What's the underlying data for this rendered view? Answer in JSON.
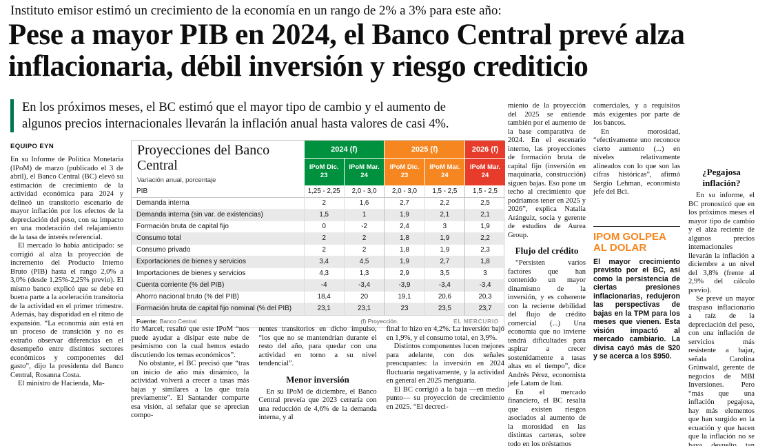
{
  "masthead": {
    "kicker": "Instituto emisor estimó un crecimiento de la economía en un rango de 2% a 3% para este año:",
    "headline": "Pese a mayor PIB en 2024, el Banco Central prevé alza inflacionaria, débil inversión y riesgo crediticio",
    "subhead": "En los próximos meses, el BC estimó que el mayor tipo de cambio y el aumento de algunos precios internacionales llevarán la inflación anual hasta valores de casi 4%.",
    "byline": "EQUIPO EYN"
  },
  "table": {
    "title": "Proyecciones del Banco Central",
    "subtitle": "Variación anual, porcentaje",
    "year_groups": [
      {
        "label": "2024 (f)",
        "color": "#00913f"
      },
      {
        "label": "2025 (f)",
        "color": "#f6861f"
      },
      {
        "label": "2026 (f)",
        "color": "#e73b2b"
      }
    ],
    "col_headers": [
      "IPoM Dic. 23",
      "IPoM Mar. 24",
      "IPoM Dic. 23",
      "IPoM Mar. 24",
      "IPoM Mar. 24"
    ],
    "rows": [
      {
        "label": "PIB",
        "values": [
          "1,25 - 2,25",
          "2,0 - 3,0",
          "2,0 - 3,0",
          "1,5 - 2,5",
          "1,5 - 2,5"
        ]
      },
      {
        "label": "Demanda interna",
        "values": [
          "2",
          "1,6",
          "2,7",
          "2,2",
          "2,5"
        ]
      },
      {
        "label": "Demanda interna (sin var. de existencias)",
        "values": [
          "1,5",
          "1",
          "1,9",
          "2,1",
          "2,1"
        ]
      },
      {
        "label": "Formación bruta de capital fijo",
        "values": [
          "0",
          "-2",
          "2,4",
          "3",
          "1,9"
        ]
      },
      {
        "label": "Consumo total",
        "values": [
          "2",
          "2",
          "1,8",
          "1,9",
          "2,2"
        ]
      },
      {
        "label": "Consumo privado",
        "values": [
          "2",
          "2",
          "1,8",
          "1,9",
          "2,3"
        ]
      },
      {
        "label": "Exportaciones de bienes y servicios",
        "values": [
          "3,4",
          "4,5",
          "1,9",
          "2,7",
          "1,8"
        ]
      },
      {
        "label": "Importaciones de bienes y servicios",
        "values": [
          "4,3",
          "1,3",
          "2,9",
          "3,5",
          "3"
        ]
      },
      {
        "label": "Cuenta corriente (% del PIB)",
        "values": [
          "-4",
          "-3,4",
          "-3,9",
          "-3,4",
          "-3,4"
        ]
      },
      {
        "label": "Ahorro nacional bruto (% del PIB)",
        "values": [
          "18,4",
          "20",
          "19,1",
          "20,6",
          "20,3"
        ]
      },
      {
        "label": "Formación bruta de capital fijo nominal (% del PIB)",
        "values": [
          "23,1",
          "23,1",
          "23",
          "23,5",
          "23,7"
        ]
      }
    ],
    "source_label": "Fuente:",
    "source": "Banco Central",
    "note": "(f) Proyección.",
    "credit": "EL MERCURIO"
  },
  "body": {
    "col1": {
      "p1": "En su Informe de Política Monetaria (IPoM) de marzo (publicado el 3 de abril), el Banco Central (BC) elevó su estimación de crecimiento de la actividad económica para 2024 y delineó un transitorio escenario de mayor inflación por los efectos de la depreciación del peso, con su impacto en una moderación del relajamiento de la tasa de interés referencial.",
      "p2": "El mercado lo había anticipado: se corrigió al alza la proyección de incremento del Producto Interno Bruto (PIB) hasta el rango 2,0% a 3,0% (desde 1,25%-2,25% previo). El mismo banco explicó que se debe en buena parte a la aceleración transitoria de la actividad en el primer trimestre. Además, hay disparidad en el ritmo de expansión. “La economía aún está en un proceso de transición y no es extraño observar diferencias en el desempeño entre distintos sectores económicos y componentes del gasto”, dijo la presidenta del Banco Central, Rosanna Costa.",
      "p3": "El ministro de Hacienda, Ma-"
    },
    "col2": {
      "p1": "rio Marcel, resaltó que este IPoM “nos puede ayudar a disipar este nube de pesimismo con la cual hemos estado discutiendo los temas económicos”.",
      "p2": "No obstante, el BC precisó que “tras un inicio de año más dinámico, la actividad volverá a crecer a tasas más bajas y similares a las que traía previamente”. El Santander comparte esa visión, al señalar que se aprecian compo-"
    },
    "col3": {
      "p1": "nentes transitorios en dicho impulso, “los que no se mantendrían durante el resto del año, para quedar con una actividad en torno a su nivel tendencial”.",
      "heading": "Menor inversión",
      "p2": "En su IPoM de diciembre, el Banco Central preveía que 2023 cerraría con una reducción de 4,6% de la demanda interna, y al"
    },
    "col4": {
      "p1": "final lo hizo en 4,2%. La inversión bajó en 1,9%, y el consumo total, en 3,9%.",
      "p2": "Distintos componentes lucen mejores para adelante, con dos señales preocupantes: la inversión en 2024 fluctuaría negativamente, y la actividad en general en 2025 menguaría.",
      "p3": "El BC corrigió a la baja —en medio punto— su proyección de crecimiento en 2025. “El decreci-"
    },
    "col5": {
      "p1": "miento de la proyección del 2025 se entiende también por el aumento de la base comparativa de 2024. En el escenario interno, las proyecciones de formación bruta de capital fijo (inversión en maquinaria, construcción) siguen bajas. Eso pone un techo al crecimiento que podríamos tener en 2025 y 2026”, explica Natalia Aránguiz, socia y gerente de estudios de Aurea Group.",
      "heading": "Flujo del crédito",
      "p2": "“Persisten varios factores que han contenido un mayor dinamismo de la inversión, y es coherente con la reciente debilidad del flujo de crédito comercial (...) Una economía que no invierte tendrá dificultades para aspirar a crecer sostenidamente a tasas altas en el tiempo”, dice Andrés Pérez, economista jefe Latam de Itaú.",
      "p3": "En el mercado financiero, el BC resalta que existen riesgos asociados al aumento de la morosidad en las distintas carteras, sobre todo en los préstamos"
    },
    "col6": {
      "p1": "comerciales, y a requisitos más exigentes por parte de los bancos.",
      "p2": "En morosidad, “efectivamente uno reconoce cierto aumento (...) en niveles relativamente alineados con lo que son las cifras históricas”, afirmó Sergio Lehman, economista jefe del Bci."
    },
    "col7": {
      "heading": "¿Pegajosa inflación?",
      "p1": "En su informe, el BC pronosticó que en los próximos meses el mayor tipo de cambio y el alza reciente de algunos precios internacionales llevarán la inflación a diciembre a un nivel del 3,8% (frente al 2,9% del cálculo previo).",
      "p2": "Se prevé un mayor traspaso inflacionario a raíz de la depreciación del peso, con una inflación de servicios más resistente a bajar, señala Carolina Grünwald, gerente de negocios de MBI Inversiones. Pero “más que una inflación pegajosa, hay más elementos que han surgido en la ecuación y que hacen que la inflación no se haya devuelto tan rápido como se preveía”."
    }
  },
  "highlight_box": {
    "title": "IPOM GOLPEA AL DOLAR",
    "body": "El mayor crecimiento previsto por el BC, así como la persistencia de ciertas presiones inflacionarias, redujeron las perspectivas de bajas en la TPM para los meses que vienen. Esta visión impactó al mercado cambiario. La divisa cayó más de $20 y se acerca a los $950."
  },
  "colors": {
    "green_2024": "#00913f",
    "orange_2025": "#f6861f",
    "red_2026": "#e73b2b",
    "subhead_bar_green": "#00764e",
    "box_title_orange": "#f6861f"
  }
}
